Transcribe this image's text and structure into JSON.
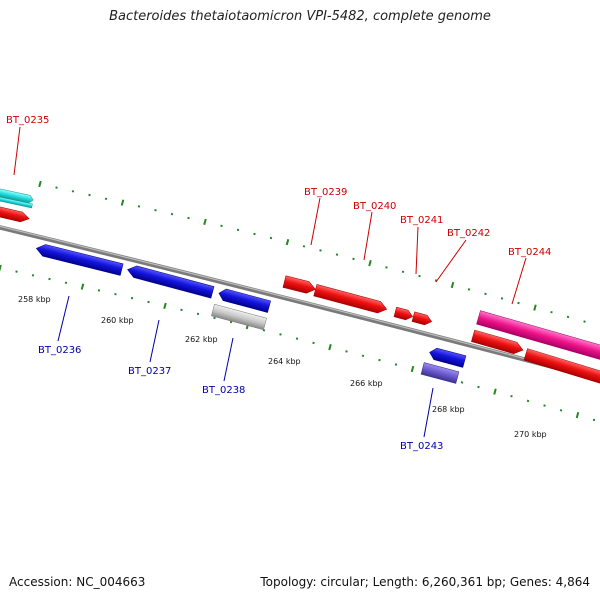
{
  "title": "Bacteroides thetaiotaomicron VPI-5482, complete genome",
  "footer": {
    "accession": "Accession: NC_004663",
    "stats": "Topology: circular; Length: 6,260,361 bp; Genes: 4,864"
  },
  "colors": {
    "forward_gene": "#ee1111",
    "reverse_gene": "#1414dd",
    "forward_label": "#cc0000",
    "reverse_label": "#0000aa",
    "cyan_gene": "#22dddd",
    "magenta_gene": "#ee1188",
    "gray_gene": "#c8c8c8",
    "purple_gene": "#6a5acd",
    "backbone": "#7a7a7a",
    "dots": "#228822"
  },
  "ticks": [
    "258 kbp",
    "260 kbp",
    "262 kbp",
    "264 kbp",
    "266 kbp",
    "268 kbp",
    "270 kbp"
  ],
  "forward_genes": [
    {
      "label": "BT_0235",
      "color": "cyan"
    },
    {
      "label": "BT_0239",
      "color": "red"
    },
    {
      "label": "BT_0240",
      "color": "red"
    },
    {
      "label": "BT_0241",
      "color": "red"
    },
    {
      "label": "BT_0242",
      "color": "red"
    },
    {
      "label": "BT_0244",
      "color": "magenta"
    }
  ],
  "reverse_genes": [
    {
      "label": "BT_0236",
      "color": "blue"
    },
    {
      "label": "BT_0237",
      "color": "blue"
    },
    {
      "label": "BT_0238",
      "color": "blue"
    },
    {
      "label": "BT_0243",
      "color": "blue"
    }
  ]
}
